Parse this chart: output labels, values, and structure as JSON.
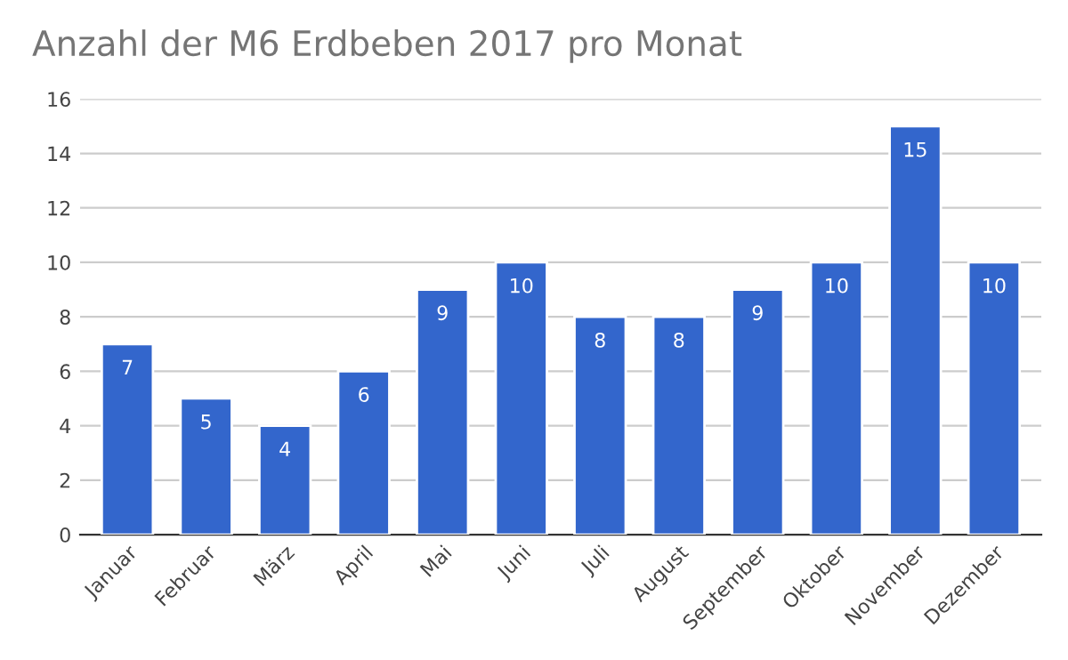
{
  "chart_data": {
    "type": "bar",
    "title": "Anzahl der M6 Erdbeben 2017 pro Monat",
    "categories": [
      "Januar",
      "Februar",
      "März",
      "April",
      "Mai",
      "Juni",
      "Juli",
      "August",
      "September",
      "Oktober",
      "November",
      "Dezember"
    ],
    "values": [
      7,
      5,
      4,
      6,
      9,
      10,
      8,
      8,
      9,
      10,
      15,
      10
    ],
    "color": "#3366cc",
    "ylim": [
      0,
      16
    ],
    "yticks": [
      0,
      2,
      4,
      6,
      8,
      10,
      12,
      14,
      16
    ],
    "grid": "y",
    "data_labels": true
  }
}
